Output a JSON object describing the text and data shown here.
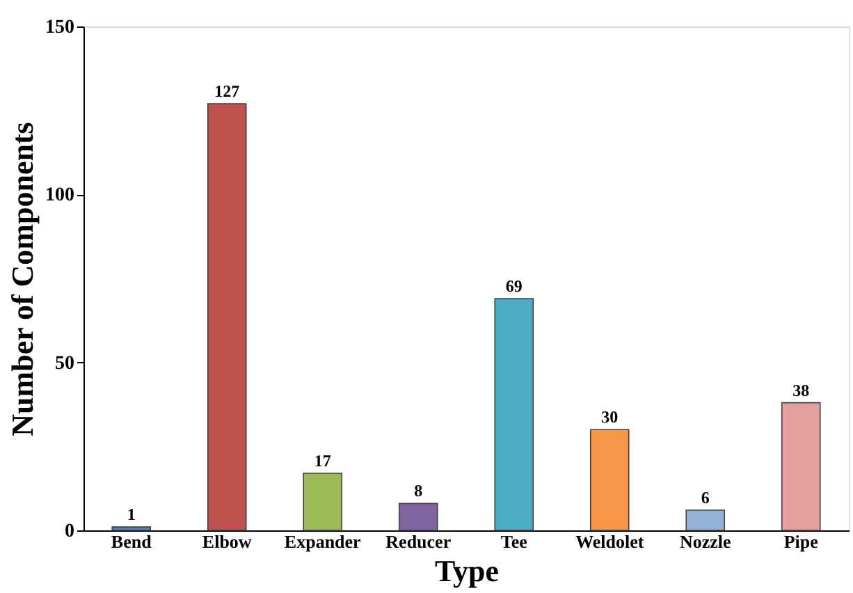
{
  "chart_data": {
    "type": "bar",
    "xlabel": "Type",
    "ylabel": "Number of Components",
    "categories": [
      "Bend",
      "Elbow",
      "Expander",
      "Reducer",
      "Tee",
      "Weldolet",
      "Nozzle",
      "Pipe"
    ],
    "values": [
      1,
      127,
      17,
      8,
      69,
      30,
      6,
      38
    ],
    "colors": [
      "#4f81bd",
      "#c0504d",
      "#9bbb59",
      "#8064a2",
      "#4bacc6",
      "#f79646",
      "#95b3d7",
      "#e6a0a0"
    ],
    "ylim": [
      0,
      150
    ],
    "yticks": [
      0,
      50,
      100,
      150
    ],
    "grid": false,
    "data_labels": true
  }
}
